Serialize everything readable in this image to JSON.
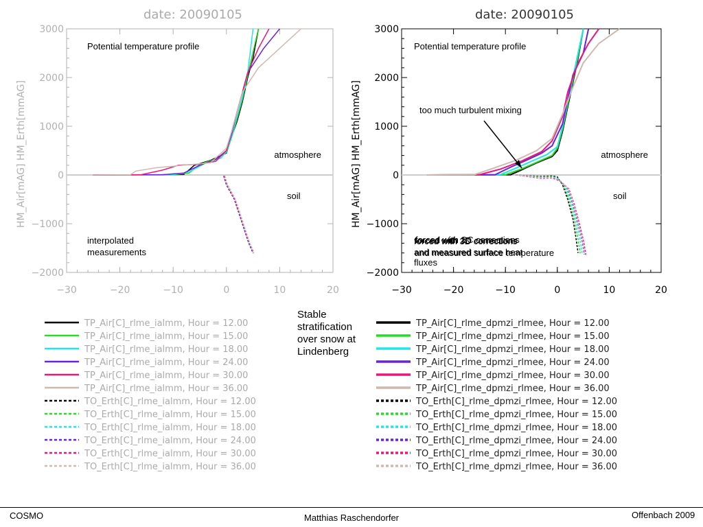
{
  "slide": {
    "center_title": "Stable stratification over snow at Lindenberg",
    "footer_left": "COSMO",
    "footer_center": "Matthias Raschendorfer",
    "footer_right": "Offenbach 2009"
  },
  "colors": {
    "series": [
      "#000000",
      "#22dd22",
      "#22e5e5",
      "#6622dd",
      "#e8177a",
      "#cfb8b0"
    ],
    "axis_faded": "#b0b0b0",
    "axis_dark": "#000000"
  },
  "chart_data": [
    {
      "type": "line",
      "title": "date:  20090105",
      "ylabel": "HM_Air[mAG]  HM_Erth[mmAG]",
      "xlabel": "",
      "xlim": [
        -30,
        20
      ],
      "ylim": [
        -2000,
        3000
      ],
      "xticks": [
        "−30",
        "−20",
        "−10",
        "0",
        "10",
        "20"
      ],
      "yticks": [
        "−2000",
        "−1000",
        "0",
        "1000",
        "2000",
        "3000"
      ],
      "style": "faded",
      "annotations": [
        "Potential temperature profile",
        "atmosphere",
        "soil",
        "interpolated measurements"
      ],
      "legend": [
        "TP_Air[C]_rlme_ialmm, Hour = 12.00",
        "TP_Air[C]_rlme_ialmm, Hour = 15.00",
        "TP_Air[C]_rlme_ialmm, Hour = 18.00",
        "TP_Air[C]_rlme_ialmm, Hour = 24.00",
        "TP_Air[C]_rlme_ialmm, Hour = 30.00",
        "TP_Air[C]_rlme_ialmm, Hour = 36.00",
        "TO_Erth[C]_rlme_ialmm, Hour = 12.00",
        "TO_Erth[C]_rlme_ialmm, Hour = 15.00",
        "TO_Erth[C]_rlme_ialmm, Hour = 18.00",
        "TO_Erth[C]_rlme_ialmm, Hour = 24.00",
        "TO_Erth[C]_rlme_ialmm, Hour = 30.00",
        "TO_Erth[C]_rlme_ialmm, Hour = 36.00"
      ],
      "air_series": [
        {
          "points": [
            [
              -25,
              0
            ],
            [
              -12,
              5
            ],
            [
              -8,
              10
            ],
            [
              -6,
              200
            ],
            [
              -3,
              300
            ],
            [
              0,
              450
            ],
            [
              1,
              800
            ],
            [
              2,
              1100
            ],
            [
              3,
              1500
            ],
            [
              4,
              2000
            ],
            [
              5,
              2400
            ],
            [
              6,
              3000
            ]
          ]
        },
        {
          "points": [
            [
              -25,
              0
            ],
            [
              -10,
              5
            ],
            [
              -7,
              40
            ],
            [
              -5,
              220
            ],
            [
              -2,
              330
            ],
            [
              0,
              460
            ],
            [
              1,
              780
            ],
            [
              2,
              1150
            ],
            [
              3,
              1550
            ],
            [
              4,
              2050
            ],
            [
              6,
              3000
            ]
          ]
        },
        {
          "points": [
            [
              -25,
              0
            ],
            [
              -10,
              5
            ],
            [
              -7,
              60
            ],
            [
              -4,
              240
            ],
            [
              -1,
              350
            ],
            [
              0,
              480
            ],
            [
              1,
              800
            ],
            [
              2,
              1200
            ],
            [
              3,
              1600
            ],
            [
              4,
              2100
            ],
            [
              5,
              3000
            ]
          ]
        },
        {
          "points": [
            [
              -25,
              0
            ],
            [
              -12,
              5
            ],
            [
              -8,
              40
            ],
            [
              -5,
              200
            ],
            [
              -2,
              320
            ],
            [
              0,
              500
            ],
            [
              1,
              850
            ],
            [
              2,
              1300
            ],
            [
              3,
              1700
            ],
            [
              4,
              2100
            ],
            [
              7,
              2600
            ],
            [
              10,
              3000
            ]
          ]
        },
        {
          "points": [
            [
              -25,
              0
            ],
            [
              -16,
              5
            ],
            [
              -12,
              100
            ],
            [
              -9,
              200
            ],
            [
              -5,
              220
            ],
            [
              -2,
              280
            ],
            [
              0,
              500
            ],
            [
              1,
              900
            ],
            [
              2,
              1300
            ],
            [
              3,
              1700
            ],
            [
              4,
              2100
            ],
            [
              6,
              2600
            ],
            [
              8,
              3000
            ]
          ]
        },
        {
          "points": [
            [
              -25,
              0
            ],
            [
              -18,
              5
            ],
            [
              -17,
              80
            ],
            [
              -13,
              150
            ],
            [
              -8,
              200
            ],
            [
              -3,
              250
            ],
            [
              0,
              550
            ],
            [
              1,
              900
            ],
            [
              2,
              1300
            ],
            [
              3,
              1700
            ],
            [
              6,
              2200
            ],
            [
              10,
              2600
            ],
            [
              14,
              3000
            ]
          ]
        }
      ],
      "soil_series": [
        {
          "points": [
            [
              -0.5,
              -20
            ],
            [
              0,
              -200
            ],
            [
              1.5,
              -500
            ],
            [
              3,
              -1000
            ],
            [
              4.2,
              -1400
            ],
            [
              5,
              -1600
            ]
          ]
        },
        {
          "points": [
            [
              -0.4,
              -20
            ],
            [
              0.1,
              -200
            ],
            [
              1.6,
              -500
            ],
            [
              3.1,
              -1000
            ],
            [
              4.3,
              -1400
            ],
            [
              5.1,
              -1600
            ]
          ]
        },
        {
          "points": [
            [
              -0.3,
              -20
            ],
            [
              0.2,
              -200
            ],
            [
              1.7,
              -500
            ],
            [
              3.2,
              -1000
            ],
            [
              4.4,
              -1400
            ],
            [
              5.2,
              -1600
            ]
          ]
        },
        {
          "points": [
            [
              -0.5,
              -20
            ],
            [
              0,
              -200
            ],
            [
              1.5,
              -500
            ],
            [
              3,
              -1000
            ],
            [
              4.2,
              -1400
            ],
            [
              5,
              -1600
            ]
          ]
        },
        {
          "points": [
            [
              -0.4,
              -20
            ],
            [
              0.1,
              -200
            ],
            [
              1.6,
              -500
            ],
            [
              3.1,
              -1000
            ],
            [
              4.3,
              -1400
            ],
            [
              5.1,
              -1600
            ]
          ]
        },
        {
          "points": [
            [
              -0.3,
              -20
            ],
            [
              0.2,
              -200
            ],
            [
              1.7,
              -500
            ],
            [
              3.2,
              -1000
            ],
            [
              4.4,
              -1400
            ],
            [
              5.2,
              -1600
            ]
          ]
        }
      ]
    },
    {
      "type": "line",
      "title": "date:  20090105",
      "ylabel": "HM_Air[mAG]  HM_Erth[mmAG]",
      "xlabel": "",
      "xlim": [
        -30,
        20
      ],
      "ylim": [
        -2000,
        3000
      ],
      "xticks": [
        "−30",
        "−20",
        "−10",
        "0",
        "10",
        "20"
      ],
      "yticks": [
        "−2000",
        "−1000",
        "0",
        "1000",
        "2000",
        "3000"
      ],
      "style": "dark",
      "annotations": [
        "Potential temperature profile",
        "too much turbulent mixing",
        "atmosphere",
        "soil"
      ],
      "overlapping_labels": [
        "forced with 3D corrections",
        "and measured surface heat fluxes",
        "forced with 3D corrections",
        "and measured surface temperature",
        "forced with SC corrections"
      ],
      "legend": [
        "TP_Air[C]_rlme_dpmzi_rlmee, Hour = 12.00",
        "TP_Air[C]_rlme_dpmzi_rlmee, Hour = 15.00",
        "TP_Air[C]_rlme_dpmzi_rlmee, Hour = 18.00",
        "TP_Air[C]_rlme_dpmzi_rlmee, Hour = 24.00",
        "TP_Air[C]_rlme_dpmzi_rlmee, Hour = 30.00",
        "TP_Air[C]_rlme_dpmzi_rlmee, Hour = 36.00",
        "TO_Erth[C]_rlme_dpmzi_rlmee, Hour = 12.00",
        "TO_Erth[C]_rlme_dpmzi_rlmee, Hour = 15.00",
        "TO_Erth[C]_rlme_dpmzi_rlmee, Hour = 18.00",
        "TO_Erth[C]_rlme_dpmzi_rlmee, Hour = 24.00",
        "TO_Erth[C]_rlme_dpmzi_rlmee, Hour = 30.00",
        "TO_Erth[C]_rlme_dpmzi_rlmee, Hour = 36.00"
      ],
      "air_series": [
        {
          "points": [
            [
              -25,
              0
            ],
            [
              -9,
              5
            ],
            [
              -7,
              100
            ],
            [
              -4,
              250
            ],
            [
              -1,
              380
            ],
            [
              0,
              500
            ],
            [
              1,
              900
            ],
            [
              2,
              1400
            ],
            [
              3,
              1900
            ],
            [
              4,
              2400
            ],
            [
              5,
              3000
            ]
          ]
        },
        {
          "points": [
            [
              -25,
              0
            ],
            [
              -10,
              5
            ],
            [
              -7,
              120
            ],
            [
              -4,
              260
            ],
            [
              -1,
              400
            ],
            [
              0,
              550
            ],
            [
              1,
              950
            ],
            [
              2,
              1450
            ],
            [
              3,
              1950
            ],
            [
              4,
              2450
            ],
            [
              5,
              3000
            ]
          ]
        },
        {
          "points": [
            [
              -25,
              0
            ],
            [
              -11,
              5
            ],
            [
              -8,
              140
            ],
            [
              -5,
              280
            ],
            [
              -2,
              420
            ],
            [
              0,
              580
            ],
            [
              1,
              1000
            ],
            [
              2,
              1500
            ],
            [
              3,
              2000
            ],
            [
              4,
              2500
            ],
            [
              5,
              3000
            ]
          ]
        },
        {
          "points": [
            [
              -25,
              0
            ],
            [
              -12,
              5
            ],
            [
              -9,
              160
            ],
            [
              -6,
              300
            ],
            [
              -3,
              450
            ],
            [
              -1,
              600
            ],
            [
              1,
              1050
            ],
            [
              2,
              1550
            ],
            [
              3,
              2050
            ],
            [
              5,
              2500
            ],
            [
              6,
              3000
            ]
          ]
        },
        {
          "points": [
            [
              -25,
              0
            ],
            [
              -15,
              5
            ],
            [
              -11,
              120
            ],
            [
              -7,
              280
            ],
            [
              -3,
              480
            ],
            [
              -1,
              700
            ],
            [
              1,
              1200
            ],
            [
              2,
              1700
            ],
            [
              4,
              2300
            ],
            [
              6,
              2700
            ],
            [
              8,
              3000
            ]
          ]
        },
        {
          "points": [
            [
              -25,
              0
            ],
            [
              -16,
              5
            ],
            [
              -12,
              150
            ],
            [
              -8,
              300
            ],
            [
              -4,
              500
            ],
            [
              -1,
              750
            ],
            [
              1,
              1250
            ],
            [
              3,
              1800
            ],
            [
              5,
              2300
            ],
            [
              8,
              2700
            ],
            [
              12,
              3000
            ]
          ]
        }
      ],
      "soil_series": [
        {
          "points": [
            [
              -8,
              0
            ],
            [
              -5,
              -20
            ],
            [
              -3,
              -30
            ],
            [
              -1,
              -20
            ],
            [
              0,
              -40
            ],
            [
              1,
              -200
            ],
            [
              2,
              -500
            ],
            [
              3,
              -900
            ],
            [
              3.6,
              -1300
            ],
            [
              4,
              -1600
            ]
          ]
        },
        {
          "points": [
            [
              -8,
              0
            ],
            [
              -5,
              -25
            ],
            [
              -3,
              -40
            ],
            [
              -1,
              -30
            ],
            [
              0,
              -60
            ],
            [
              1.3,
              -220
            ],
            [
              2.3,
              -520
            ],
            [
              3.3,
              -920
            ],
            [
              4,
              -1320
            ],
            [
              4.4,
              -1610
            ]
          ]
        },
        {
          "points": [
            [
              -8,
              0
            ],
            [
              -5,
              -30
            ],
            [
              -3,
              -50
            ],
            [
              -1,
              -40
            ],
            [
              0.2,
              -80
            ],
            [
              1.6,
              -240
            ],
            [
              2.6,
              -540
            ],
            [
              3.6,
              -940
            ],
            [
              4.4,
              -1340
            ],
            [
              4.8,
              -1620
            ]
          ]
        },
        {
          "points": [
            [
              -8,
              0
            ],
            [
              -5,
              -35
            ],
            [
              -3,
              -60
            ],
            [
              -1,
              -50
            ],
            [
              0.3,
              -100
            ],
            [
              1.9,
              -260
            ],
            [
              2.9,
              -560
            ],
            [
              3.9,
              -960
            ],
            [
              4.8,
              -1360
            ],
            [
              5.2,
              -1630
            ]
          ]
        },
        {
          "points": [
            [
              -8,
              0
            ],
            [
              -5,
              -40
            ],
            [
              -3,
              -70
            ],
            [
              -1,
              -60
            ],
            [
              0.5,
              -120
            ],
            [
              2.2,
              -280
            ],
            [
              3.2,
              -580
            ],
            [
              4.2,
              -980
            ],
            [
              5.1,
              -1380
            ],
            [
              5.5,
              -1640
            ]
          ]
        },
        {
          "points": [
            [
              -8,
              0
            ],
            [
              -5,
              -30
            ],
            [
              -3,
              -60
            ],
            [
              -1,
              -50
            ],
            [
              0.4,
              -100
            ],
            [
              2,
              -260
            ],
            [
              3,
              -560
            ],
            [
              4,
              -960
            ],
            [
              4.9,
              -1360
            ],
            [
              5.3,
              -1630
            ]
          ]
        }
      ]
    }
  ]
}
